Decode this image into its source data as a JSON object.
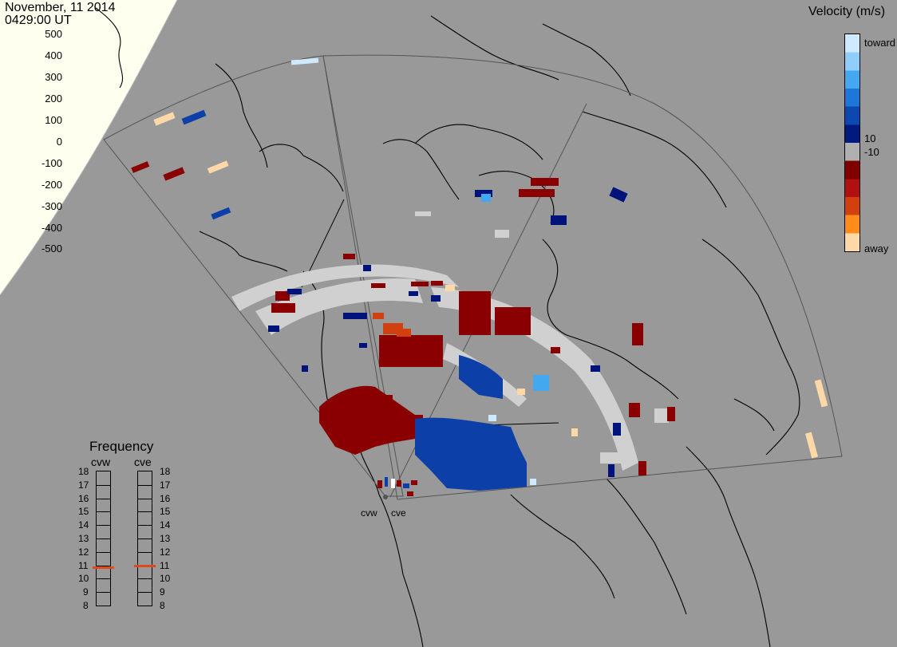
{
  "header": {
    "date": "November, 11 2014",
    "time": "0429:00 UT"
  },
  "velocity_legend": {
    "title": "Velocity (m/s)",
    "ticks_left": [
      "500",
      "400",
      "300",
      "200",
      "100",
      "0",
      "-100",
      "-200",
      "-300",
      "-400",
      "-500"
    ],
    "label_toward": "toward",
    "label_10": "10",
    "label_minus10": "-10",
    "label_away": "away",
    "colors": [
      "#cfe9ff",
      "#8fcdfa",
      "#43a8ef",
      "#1c77d8",
      "#0d47b0",
      "#001a80",
      "#b0b0b0",
      "#800000",
      "#b01010",
      "#d24010",
      "#ff8c1a",
      "#ffd8a8"
    ]
  },
  "frequency_legend": {
    "title": "Frequency",
    "cvw_label": "cvw",
    "cve_label": "cve",
    "scale": [
      "18",
      "17",
      "16",
      "15",
      "14",
      "13",
      "12",
      "11",
      "10",
      "9",
      "8"
    ],
    "cvw_mhz": 10.8,
    "cve_mhz": 10.9,
    "marker_color": "#e04a1a"
  },
  "radars": {
    "cvw": "cvw",
    "cve": "cve"
  },
  "colors": {
    "ground": "#999999",
    "sunlit": "#fffff0",
    "coast": "#000000",
    "fov": "#555555",
    "ground_scatter": "#d0d0d0"
  }
}
